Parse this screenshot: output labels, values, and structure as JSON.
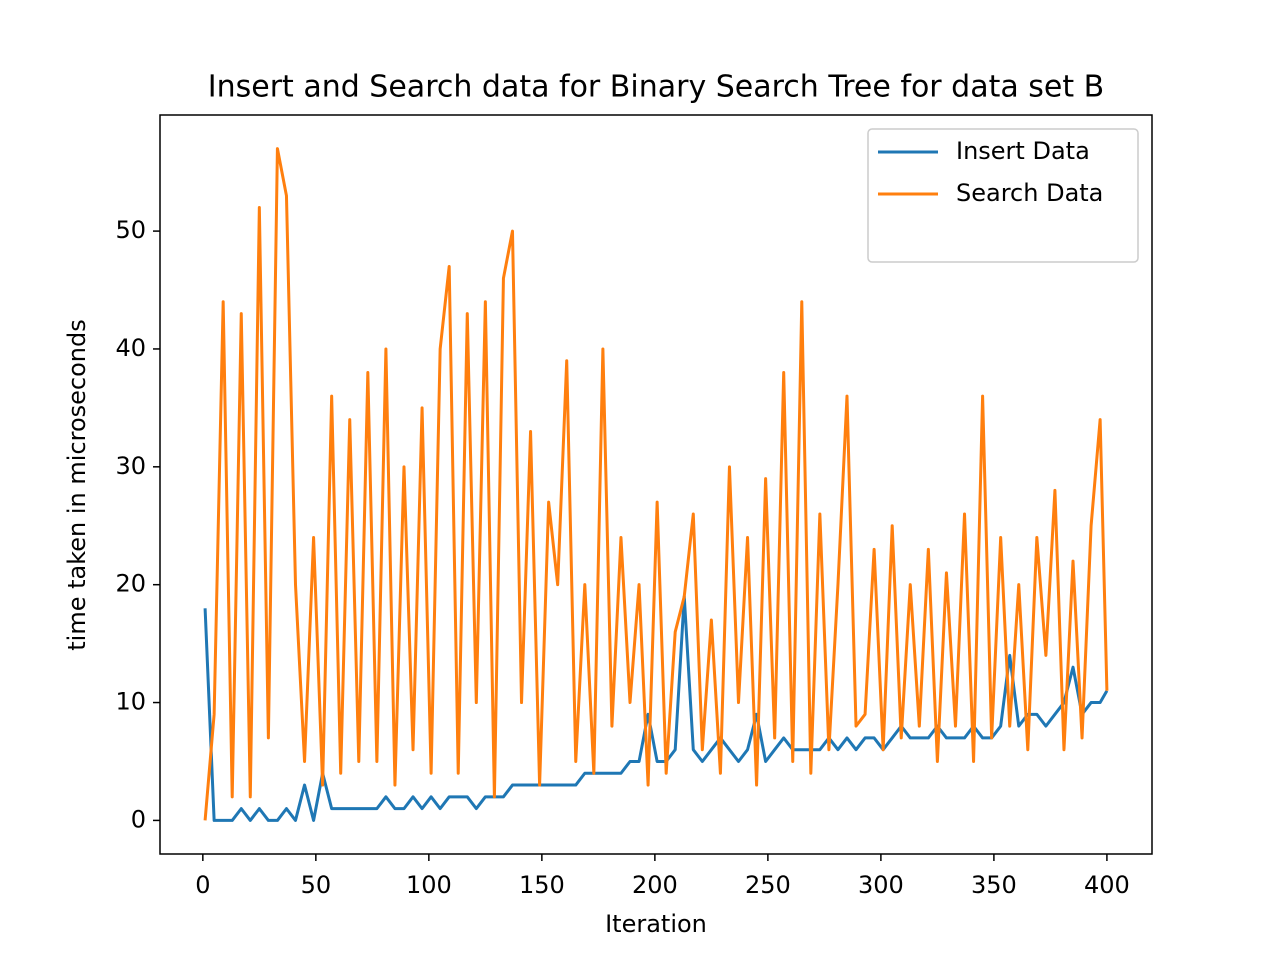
{
  "chart_data": {
    "type": "line",
    "title": "Insert and Search data for Binary Search Tree for data set B",
    "x_label": "Iteration",
    "y_label": "time taken in microseconds",
    "x": [
      1,
      5,
      9,
      13,
      17,
      21,
      25,
      29,
      33,
      37,
      41,
      45,
      49,
      53,
      57,
      61,
      65,
      69,
      73,
      77,
      81,
      85,
      89,
      93,
      97,
      101,
      105,
      109,
      113,
      117,
      121,
      125,
      129,
      133,
      137,
      141,
      145,
      149,
      153,
      157,
      161,
      165,
      169,
      173,
      177,
      181,
      185,
      189,
      193,
      197,
      201,
      205,
      209,
      213,
      217,
      221,
      225,
      229,
      233,
      237,
      241,
      245,
      249,
      253,
      257,
      261,
      265,
      269,
      273,
      277,
      281,
      285,
      289,
      293,
      297,
      301,
      305,
      309,
      313,
      317,
      321,
      325,
      329,
      333,
      337,
      341,
      345,
      349,
      353,
      357,
      361,
      365,
      369,
      373,
      377,
      381,
      385,
      389,
      393,
      397,
      400
    ],
    "series": [
      {
        "name": "Insert Data",
        "color": "#1f77b4",
        "values": [
          18,
          0,
          0,
          0,
          1,
          0,
          1,
          0,
          0,
          1,
          0,
          3,
          0,
          4,
          1,
          1,
          1,
          1,
          1,
          1,
          2,
          1,
          1,
          2,
          1,
          2,
          1,
          2,
          2,
          2,
          1,
          2,
          2,
          2,
          3,
          3,
          3,
          3,
          3,
          3,
          3,
          3,
          4,
          4,
          4,
          4,
          4,
          5,
          5,
          9,
          5,
          5,
          6,
          19,
          6,
          5,
          6,
          7,
          6,
          5,
          6,
          9,
          5,
          6,
          7,
          6,
          6,
          6,
          6,
          7,
          6,
          7,
          6,
          7,
          7,
          6,
          7,
          8,
          7,
          7,
          7,
          8,
          7,
          7,
          7,
          8,
          7,
          7,
          8,
          14,
          8,
          9,
          9,
          8,
          9,
          10,
          13,
          9,
          10,
          10,
          11
        ]
      },
      {
        "name": "Search Data",
        "color": "#ff7f0e",
        "values": [
          0,
          9,
          44,
          2,
          43,
          2,
          52,
          7,
          57,
          53,
          20,
          5,
          24,
          3,
          36,
          4,
          34,
          5,
          38,
          5,
          40,
          3,
          30,
          6,
          35,
          4,
          40,
          47,
          4,
          43,
          10,
          44,
          2,
          46,
          50,
          10,
          33,
          3,
          27,
          20,
          39,
          5,
          20,
          4,
          40,
          8,
          24,
          10,
          20,
          3,
          27,
          4,
          16,
          19,
          26,
          6,
          17,
          4,
          30,
          10,
          24,
          3,
          29,
          7,
          38,
          5,
          44,
          4,
          26,
          6,
          20,
          36,
          8,
          9,
          23,
          6,
          25,
          7,
          20,
          8,
          23,
          5,
          21,
          8,
          26,
          5,
          36,
          7,
          24,
          8,
          20,
          6,
          24,
          14,
          28,
          6,
          22,
          7,
          25,
          34,
          11
        ]
      }
    ],
    "xlim": [
      -18.95,
      419.95
    ],
    "ylim": [
      -2.85,
      59.85
    ],
    "xticks": [
      0,
      50,
      100,
      150,
      200,
      250,
      300,
      350,
      400
    ],
    "yticks": [
      0,
      10,
      20,
      30,
      40,
      50
    ],
    "legend": "upper right",
    "grid": false
  }
}
